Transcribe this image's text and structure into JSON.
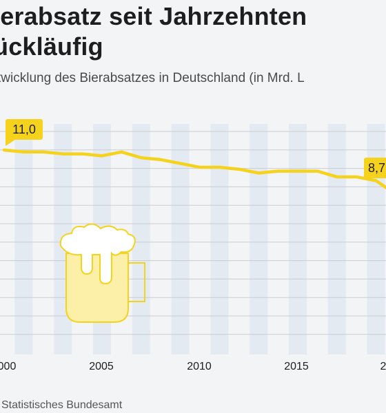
{
  "title_line1": "ierabsatz seit Jahrzehnten",
  "title_line2": "ückläufig",
  "subtitle": "twicklung des Bierabsatzes in Deutschland (in Mrd. L",
  "source": "Statistisches Bundesamt",
  "colors": {
    "line": "#f5d21c",
    "label_bg": "#f5d21c",
    "band": "#e4eaf2",
    "grid": "#c9cdd2",
    "mug": "#fcefa8"
  },
  "icons": [
    "beer-mug-icon"
  ],
  "chart_data": {
    "type": "line",
    "x": [
      2000,
      2001,
      2002,
      2003,
      2004,
      2005,
      2006,
      2007,
      2008,
      2009,
      2010,
      2011,
      2012,
      2013,
      2014,
      2015,
      2016,
      2017,
      2018,
      2019,
      2020
    ],
    "values": [
      11.0,
      10.9,
      10.9,
      10.8,
      10.8,
      10.7,
      10.9,
      10.6,
      10.5,
      10.3,
      10.1,
      10.1,
      10.0,
      9.8,
      9.9,
      9.9,
      9.9,
      9.6,
      9.6,
      9.4,
      8.7
    ],
    "xticks": [
      "000",
      "2005",
      "2010",
      "2015",
      "2"
    ],
    "annotations": [
      {
        "text": "11,0"
      },
      {
        "text": "8,7"
      }
    ],
    "grid": true
  }
}
